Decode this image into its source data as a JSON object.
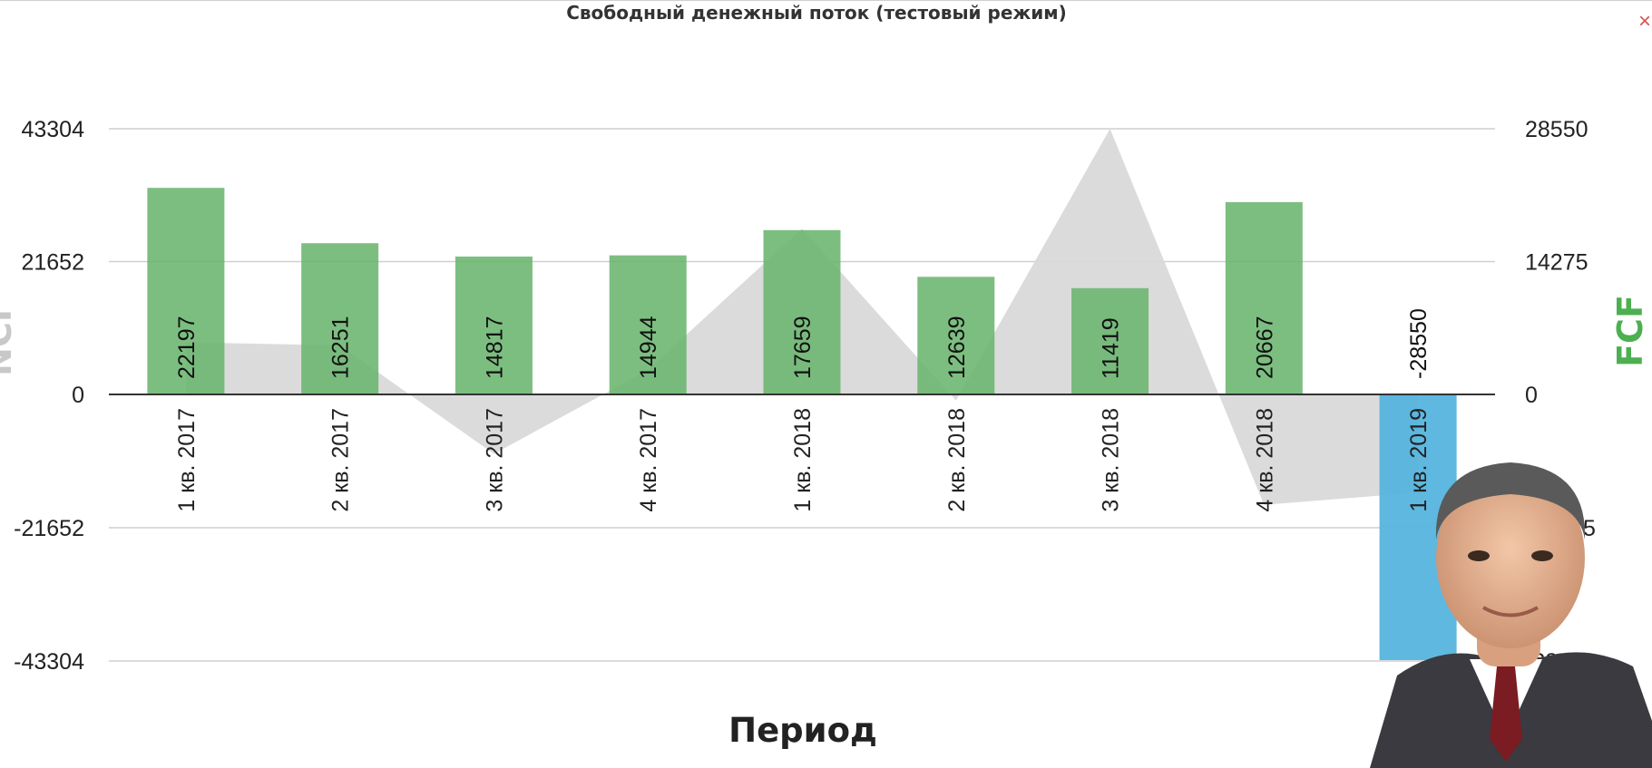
{
  "page": {
    "close_symbol": "×"
  },
  "chart_data": {
    "type": "bar",
    "title": "Свободный денежный поток (тестовый режим)",
    "xlabel": "Период",
    "ylabel_left": "NCF",
    "ylabel_right": "FCF",
    "categories": [
      "1 кв. 2017",
      "2 кв. 2017",
      "3 кв. 2017",
      "4 кв. 2017",
      "1 кв. 2018",
      "2 кв. 2018",
      "3 кв. 2018",
      "4 кв. 2018",
      "1 кв. 2019"
    ],
    "ylim_left": [
      -43304,
      43304
    ],
    "yticks_left": [
      "43304",
      "21652",
      "0",
      "-21652",
      "-43304"
    ],
    "ylim_right": [
      -28550,
      28550
    ],
    "yticks_right": [
      "28550",
      "14275",
      "0",
      "-14275",
      "-28550"
    ],
    "series": [
      {
        "name": "FCF",
        "axis": "right",
        "kind": "bar",
        "values": [
          22197,
          16251,
          14817,
          14944,
          17659,
          12639,
          11419,
          20667,
          -28550
        ],
        "labels": [
          "22197",
          "16251",
          "14817",
          "14944",
          "17659",
          "12639",
          "11419",
          "20667",
          "-28550"
        ],
        "color_positive": "#6ab56e",
        "color_negative": "#55b4de"
      },
      {
        "name": "NCF",
        "axis": "left",
        "kind": "area",
        "values": [
          8500,
          8000,
          -9700,
          4000,
          27000,
          -1000,
          43304,
          -18000,
          -16000
        ],
        "color": "#d9d9d9"
      }
    ],
    "grid": true
  }
}
